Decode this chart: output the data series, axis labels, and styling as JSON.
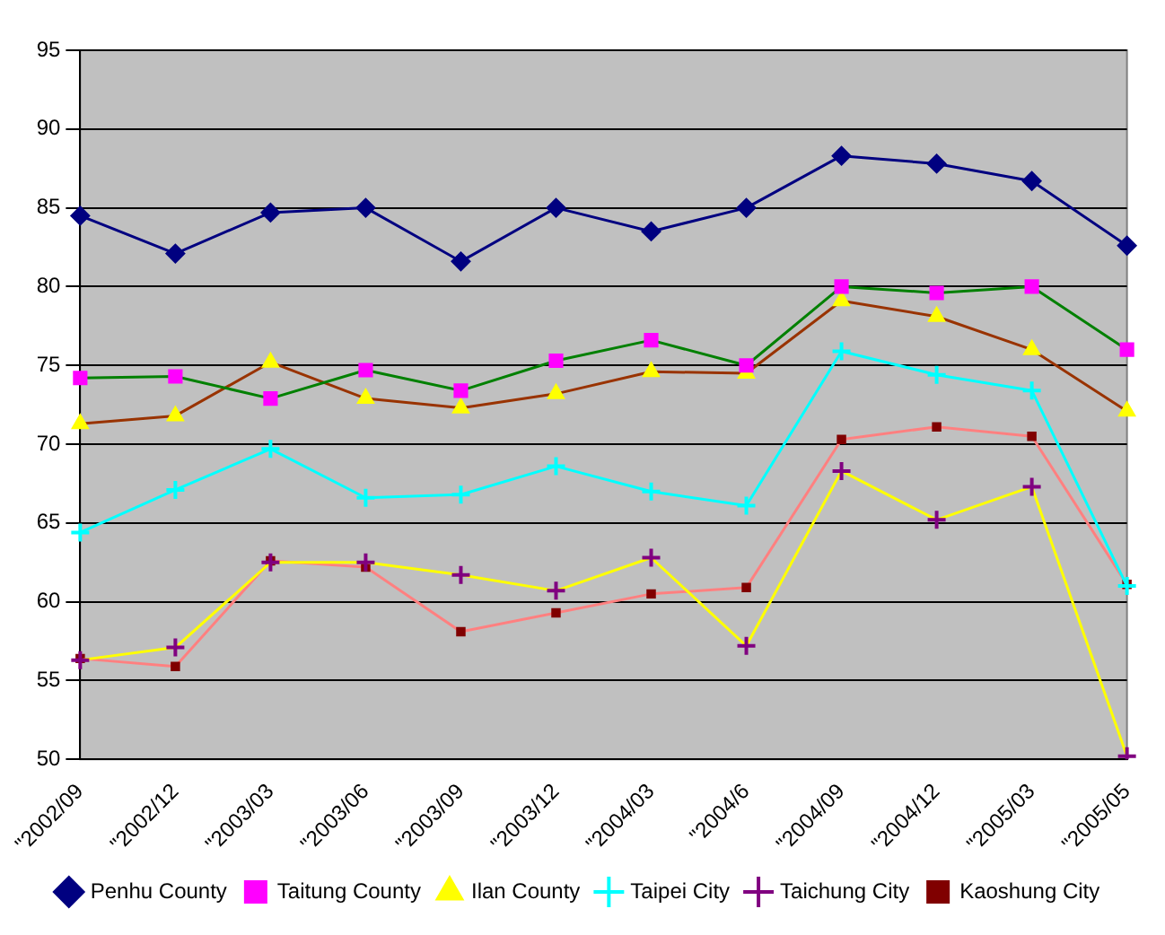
{
  "chart_data": {
    "type": "line",
    "categories": [
      "\"2002/09",
      "\"2002/12",
      "\"2003/03",
      "\"2003/06",
      "\"2003/09",
      "\"2003/12",
      "\"2004/03",
      "\"2004/6",
      "\"2004/09",
      "\"2004/12",
      "\"2005/03",
      "\"2005/05"
    ],
    "series": [
      {
        "name": "Penhu County",
        "color": "#000080",
        "marker": "diamond",
        "values": [
          84.5,
          82.1,
          84.7,
          85.0,
          81.6,
          85.0,
          83.5,
          85.0,
          88.3,
          87.8,
          86.7,
          82.6
        ]
      },
      {
        "name": "Taitung County",
        "color": "#008000",
        "marker": "square",
        "values": [
          74.2,
          74.3,
          72.9,
          74.7,
          73.4,
          75.3,
          76.6,
          75.0,
          80.0,
          79.6,
          80.0,
          76.0
        ]
      },
      {
        "name": "Ilan County",
        "color": "#993300",
        "marker": "triangle",
        "values": [
          71.3,
          71.8,
          75.2,
          72.9,
          72.3,
          73.2,
          74.6,
          74.5,
          79.1,
          78.1,
          76.0,
          72.1
        ]
      },
      {
        "name": "Taipei City",
        "color": "#00ffff",
        "marker": "cross",
        "values": [
          64.4,
          67.1,
          69.7,
          66.6,
          66.8,
          68.6,
          67.0,
          66.1,
          75.9,
          74.4,
          73.4,
          61.0
        ]
      },
      {
        "name": "Taichung City",
        "color": "#ffff00",
        "marker": "cross",
        "values": [
          56.3,
          57.1,
          62.5,
          62.5,
          61.7,
          60.7,
          62.8,
          57.2,
          68.3,
          65.2,
          67.3,
          50.2
        ]
      },
      {
        "name": "Kaoshung City",
        "color": "#ff8080",
        "marker": "square",
        "values": [
          56.4,
          55.9,
          62.6,
          62.2,
          58.1,
          59.3,
          60.5,
          60.9,
          70.3,
          71.1,
          70.5,
          61.1
        ]
      }
    ],
    "ylim": [
      50,
      95
    ],
    "yticks": [
      50,
      55,
      60,
      65,
      70,
      75,
      80,
      85,
      90,
      95
    ],
    "grid": "y",
    "legend": "bottom"
  }
}
